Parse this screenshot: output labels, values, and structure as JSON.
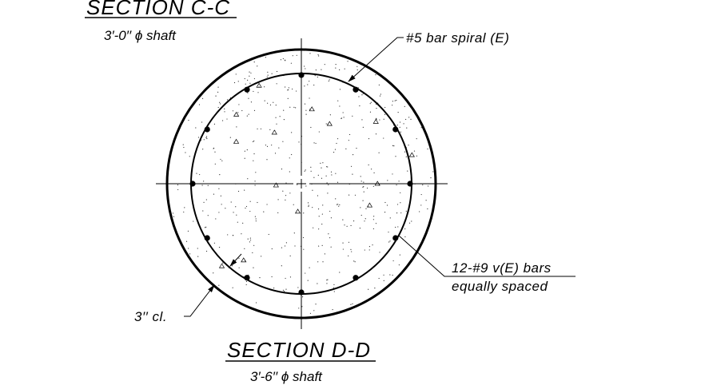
{
  "section_top": {
    "title": "SECTION C-C",
    "subtitle": "3′-0′′ ϕ shaft"
  },
  "callouts": {
    "spiral": "#5 bar spiral (E)",
    "bars_line1": "12-#9 v(E) bars",
    "bars_line2": "equally spaced",
    "cover": "3′′ cl."
  },
  "section_bottom": {
    "title": "SECTION D-D",
    "subtitle": "3′-6′′ ϕ shaft"
  }
}
